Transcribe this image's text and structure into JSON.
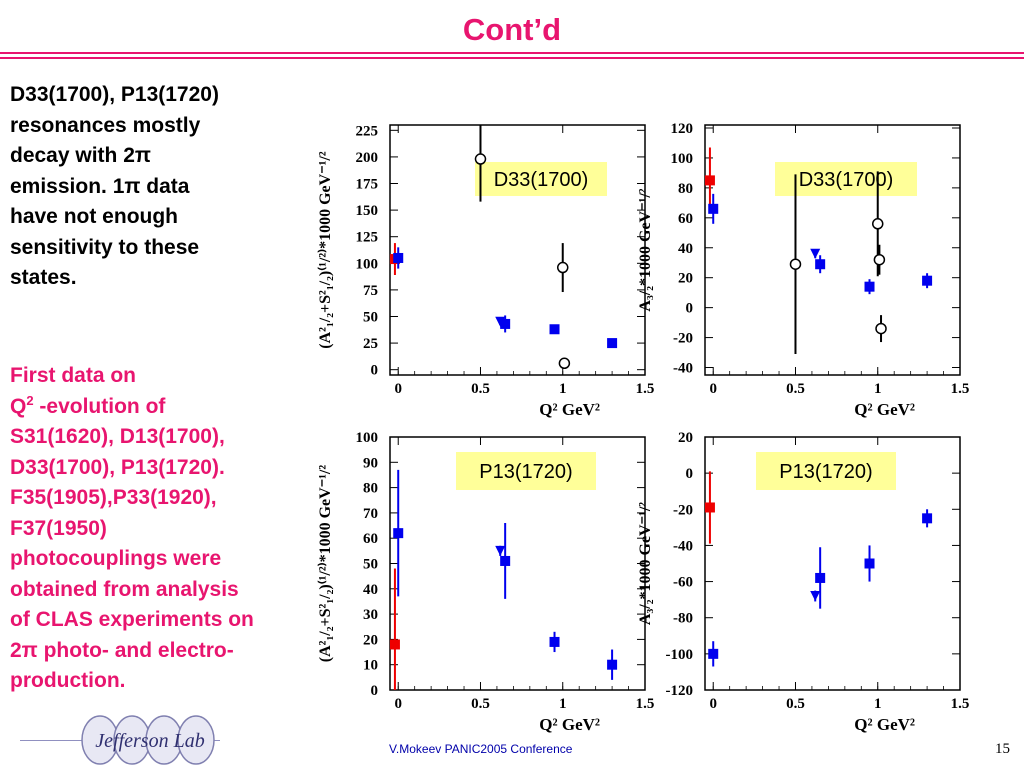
{
  "slide": {
    "title": "Cont’d",
    "left_text_1": [
      "D33(1700), P13(1720)",
      "resonances mostly",
      "decay with 2π",
      "emission. 1π data",
      "have not  enough",
      "sensitivity to these",
      "states."
    ],
    "left_text_2": [
      "First data on",
      "-evolution of",
      "S31(1620), D13(1700),",
      "D33(1700), P13(1720).",
      "F35(1905),P33(1920),",
      "F37(1950)",
      "photocouplings were",
      "obtained from analysis",
      "of CLAS experiments on",
      "2π photo- and electro-",
      "production."
    ],
    "q2_prefix": "Q",
    "q2_sup": "2",
    "footer": "V.Mokeev  PANIC2005 Conference",
    "page_number": "15",
    "logo_text": "Jefferson Lab"
  },
  "colors": {
    "accent": "#e8156f",
    "red_points": "#ee0000",
    "blue_points": "#0000ee",
    "label_box": "#ffff99"
  },
  "chart_data": [
    {
      "type": "scatter",
      "label": "D33(1700)",
      "ylabel": "(A²₁/₂+S²₁/₂)⁽¹/²⁾*1000 GeV⁻¹/²",
      "xlabel": "Q² GeV²",
      "xlim": [
        -0.05,
        1.5
      ],
      "ylim": [
        -5,
        230
      ],
      "xticks": [
        "0",
        "0.5",
        "1",
        "1.5"
      ],
      "xtick_values": [
        0,
        0.5,
        1,
        1.5
      ],
      "yticks": [
        "0",
        "25",
        "50",
        "75",
        "100",
        "125",
        "150",
        "175",
        "200",
        "225"
      ],
      "ytick_values": [
        0,
        25,
        50,
        75,
        100,
        125,
        150,
        175,
        200,
        225
      ],
      "points": [
        {
          "x": -0.02,
          "y": 104,
          "err": 15,
          "marker": "square",
          "color": "red"
        },
        {
          "x": 0.0,
          "y": 105,
          "err": 10,
          "marker": "square",
          "color": "blue"
        },
        {
          "x": 0.62,
          "y": 45,
          "err": 3,
          "marker": "triangle",
          "color": "blue"
        },
        {
          "x": 0.65,
          "y": 43,
          "err": 8,
          "marker": "square",
          "color": "blue"
        },
        {
          "x": 0.95,
          "y": 38,
          "err": 4,
          "marker": "square",
          "color": "blue"
        },
        {
          "x": 1.3,
          "y": 25,
          "err": 3,
          "marker": "square",
          "color": "blue"
        },
        {
          "x": 0.5,
          "y": 198,
          "err": 40,
          "marker": "circle",
          "color": "black"
        },
        {
          "x": 1.0,
          "y": 96,
          "err": 23,
          "marker": "circle",
          "color": "black"
        },
        {
          "x": 1.01,
          "y": 6,
          "err": 5,
          "marker": "circle",
          "color": "black"
        }
      ]
    },
    {
      "type": "scatter",
      "label": "D33(1700)",
      "ylabel": "A₃/₂*1000 GeV⁻¹/²",
      "xlabel": "Q² GeV²",
      "xlim": [
        -0.05,
        1.5
      ],
      "ylim": [
        -45,
        122
      ],
      "xticks": [
        "0",
        "0.5",
        "1",
        "1.5"
      ],
      "xtick_values": [
        0,
        0.5,
        1,
        1.5
      ],
      "yticks": [
        "-40",
        "-20",
        "0",
        "20",
        "40",
        "60",
        "80",
        "100",
        "120"
      ],
      "ytick_values": [
        -40,
        -20,
        0,
        20,
        40,
        60,
        80,
        100,
        120
      ],
      "points": [
        {
          "x": -0.02,
          "y": 85,
          "err": 22,
          "marker": "square",
          "color": "red"
        },
        {
          "x": 0.0,
          "y": 66,
          "err": 10,
          "marker": "square",
          "color": "blue"
        },
        {
          "x": 0.62,
          "y": 36,
          "err": 3,
          "marker": "triangle",
          "color": "blue"
        },
        {
          "x": 0.65,
          "y": 29,
          "err": 6,
          "marker": "square",
          "color": "blue"
        },
        {
          "x": 0.95,
          "y": 14,
          "err": 5,
          "marker": "square",
          "color": "blue"
        },
        {
          "x": 1.3,
          "y": 18,
          "err": 5,
          "marker": "square",
          "color": "blue"
        },
        {
          "x": 0.5,
          "y": 29,
          "err": 60,
          "marker": "circle",
          "color": "black"
        },
        {
          "x": 1.0,
          "y": 56,
          "err": 35,
          "marker": "circle",
          "color": "black"
        },
        {
          "x": 1.01,
          "y": 32,
          "err": 10,
          "marker": "circle",
          "color": "black"
        },
        {
          "x": 1.02,
          "y": -14,
          "err": 9,
          "marker": "circle",
          "color": "black"
        }
      ]
    },
    {
      "type": "scatter",
      "label": "P13(1720)",
      "ylabel": "(A²₁/₂+S²₁/₂)⁽¹/²⁾*1000 GeV⁻¹/²",
      "xlabel": "Q² GeV²",
      "xlim": [
        -0.05,
        1.5
      ],
      "ylim": [
        0,
        100
      ],
      "xticks": [
        "0",
        "0.5",
        "1",
        "1.5"
      ],
      "xtick_values": [
        0,
        0.5,
        1,
        1.5
      ],
      "yticks": [
        "0",
        "10",
        "20",
        "30",
        "40",
        "50",
        "60",
        "70",
        "80",
        "90",
        "100"
      ],
      "ytick_values": [
        0,
        10,
        20,
        30,
        40,
        50,
        60,
        70,
        80,
        90,
        100
      ],
      "points": [
        {
          "x": -0.02,
          "y": 18,
          "err": 30,
          "marker": "square",
          "color": "red"
        },
        {
          "x": 0.0,
          "y": 62,
          "err": 25,
          "marker": "square",
          "color": "blue"
        },
        {
          "x": 0.62,
          "y": 55,
          "err": 2,
          "marker": "triangle",
          "color": "blue"
        },
        {
          "x": 0.65,
          "y": 51,
          "err": 15,
          "marker": "square",
          "color": "blue"
        },
        {
          "x": 0.95,
          "y": 19,
          "err": 4,
          "marker": "square",
          "color": "blue"
        },
        {
          "x": 1.3,
          "y": 10,
          "err": 6,
          "marker": "square",
          "color": "blue"
        }
      ]
    },
    {
      "type": "scatter",
      "label": "P13(1720)",
      "ylabel": "A₃/₂*1000 GeV⁻¹/²",
      "xlabel": "Q² GeV²",
      "xlim": [
        -0.05,
        1.5
      ],
      "ylim": [
        -120,
        20
      ],
      "xticks": [
        "0",
        "0.5",
        "1",
        "1.5"
      ],
      "xtick_values": [
        0,
        0.5,
        1,
        1.5
      ],
      "yticks": [
        "-120",
        "-100",
        "-80",
        "-60",
        "-40",
        "-20",
        "0",
        "20"
      ],
      "ytick_values": [
        -120,
        -100,
        -80,
        -60,
        -40,
        -20,
        0,
        20
      ],
      "points": [
        {
          "x": -0.02,
          "y": -19,
          "err": 20,
          "marker": "square",
          "color": "red"
        },
        {
          "x": 0.0,
          "y": -100,
          "err": 7,
          "marker": "square",
          "color": "blue"
        },
        {
          "x": 0.62,
          "y": -68,
          "err": 3,
          "marker": "triangle",
          "color": "blue"
        },
        {
          "x": 0.65,
          "y": -58,
          "err": 17,
          "marker": "square",
          "color": "blue"
        },
        {
          "x": 0.95,
          "y": -50,
          "err": 10,
          "marker": "square",
          "color": "blue"
        },
        {
          "x": 1.3,
          "y": -25,
          "err": 5,
          "marker": "square",
          "color": "blue"
        }
      ]
    }
  ]
}
